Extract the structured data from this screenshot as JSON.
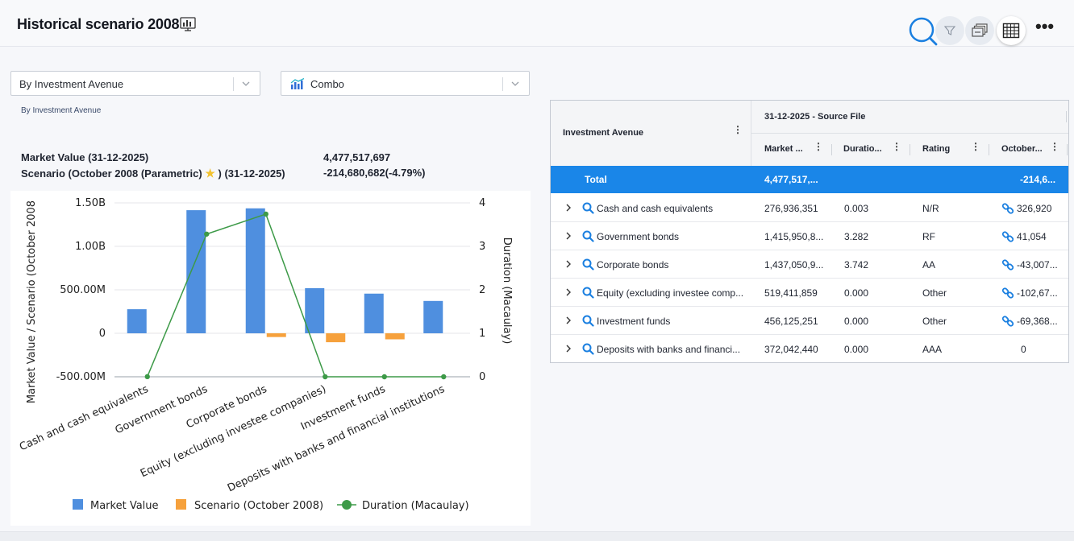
{
  "header": {
    "title": "Historical scenario 2008",
    "title_icon": "monitor-chart-icon",
    "tools": [
      "search-icon",
      "filter-icon",
      "layers-icon",
      "table-grid-icon",
      "more-icon"
    ],
    "more_label": "•••"
  },
  "controls": {
    "grouping_select": "By Investment Avenue",
    "chart_type_select": "Combo"
  },
  "summary": {
    "subtitle": "By Investment Avenue",
    "market_value_label": "Market Value (31-12-2025)",
    "market_value": "4,477,517,697",
    "scenario_label_prefix": "Scenario (October 2008 (Parametric)",
    "scenario_label_suffix": ") (31-12-2025)",
    "star": "★",
    "scenario_value": "-214,680,682(-4.79%)"
  },
  "chart_data": {
    "type": "bar",
    "categories": [
      "Cash and cash equivalents",
      "Government bonds",
      "Corporate bonds",
      "Equity (excluding investee companies)",
      "Investment funds",
      "Deposits with banks and financial institutions"
    ],
    "series": [
      {
        "name": "Market Value",
        "kind": "bar",
        "axis": "left",
        "color": "#4f8fdf",
        "values": [
          276936351,
          1415950800,
          1437050900,
          519411859,
          456125251,
          372042440
        ]
      },
      {
        "name": "Scenario (October 2008)",
        "kind": "bar",
        "axis": "left",
        "color": "#f6a13c",
        "values": [
          326920,
          41054,
          -43007000,
          -102670000,
          -69368000,
          0
        ]
      },
      {
        "name": "Duration (Macaulay)",
        "kind": "line",
        "axis": "right",
        "color": "#3d9a48",
        "values": [
          0.003,
          3.282,
          3.742,
          0.0,
          0.0,
          0.0
        ]
      }
    ],
    "ylabel": "Market Value / Scenario (October 2008",
    "y2label": "Duration (Macaulay)",
    "ylim": [
      -500000000,
      1500000000
    ],
    "y2lim": [
      0,
      4
    ],
    "yticks": [
      "1.50B",
      "1.00B",
      "500.00M",
      "0",
      "-500.00M"
    ],
    "y2ticks": [
      "4",
      "3",
      "2",
      "1",
      "0"
    ],
    "legend_position": "bottom",
    "legend": [
      "Market Value",
      "Scenario (October 2008)",
      "Duration (Macaulay)"
    ]
  },
  "table": {
    "left_header": "Investment Avenue",
    "group_header": "31-12-2025 - Source File",
    "columns": [
      "Market ...",
      "Duratio...",
      "Rating",
      "October..."
    ],
    "total": {
      "label": "Total",
      "market": "4,477,517,...",
      "duration": "",
      "rating": "",
      "october": "-214,6..."
    },
    "rows": [
      {
        "name": "Cash and cash equivalents",
        "market": "276,936,351",
        "duration": "0.003",
        "rating": "N/R",
        "october": "326,920",
        "linked": true
      },
      {
        "name": "Government bonds",
        "market": "1,415,950,8...",
        "duration": "3.282",
        "rating": "RF",
        "october": "41,054",
        "linked": true
      },
      {
        "name": "Corporate bonds",
        "market": "1,437,050,9...",
        "duration": "3.742",
        "rating": "AA",
        "october": "-43,007...",
        "linked": true
      },
      {
        "name": "Equity (excluding investee comp...",
        "market": "519,411,859",
        "duration": "0.000",
        "rating": "Other",
        "october": "-102,67...",
        "linked": true
      },
      {
        "name": "Investment funds",
        "market": "456,125,251",
        "duration": "0.000",
        "rating": "Other",
        "october": "-69,368...",
        "linked": true
      },
      {
        "name": "Deposits with banks and financi...",
        "market": "372,042,440",
        "duration": "0.000",
        "rating": "AAA",
        "october": "0",
        "linked": false
      }
    ]
  }
}
